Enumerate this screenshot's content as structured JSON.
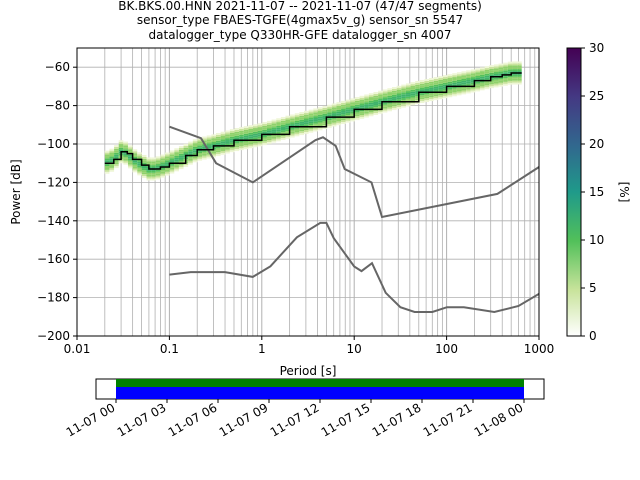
{
  "title_lines": [
    "BK.BKS.00.HNN   2021-11-07 -- 2021-11-07  (47/47 segments)",
    "sensor_type FBAES-TGFE(4gmax5v_g) sensor_sn 5547",
    "datalogger_type Q330HR-GFE datalogger_sn 4007"
  ],
  "chart_data": {
    "type": "heatmap",
    "xlabel": "Period [s]",
    "ylabel": "Power [dB]",
    "xscale": "log",
    "xlim": [
      0.01,
      1000
    ],
    "ylim": [
      -200,
      -50
    ],
    "x_ticks": [
      0.01,
      0.1,
      1,
      10,
      100,
      1000
    ],
    "x_tick_labels": [
      "0.01",
      "0.1",
      "1",
      "10",
      "100",
      "1000"
    ],
    "y_ticks": [
      -200,
      -180,
      -160,
      -140,
      -120,
      -100,
      -80,
      -60
    ],
    "y_tick_labels": [
      "−200",
      "−180",
      "−160",
      "−140",
      "−120",
      "−100",
      "−80",
      "−60"
    ],
    "grid": true,
    "colorbar": {
      "label": "[%]",
      "range": [
        0,
        30
      ],
      "ticks": [
        0,
        5,
        10,
        15,
        20,
        25,
        30
      ],
      "tick_labels": [
        "0",
        "5",
        "10",
        "15",
        "20",
        "25",
        "30"
      ],
      "colors": [
        "#ffffff",
        "#c8e39b",
        "#52c05a",
        "#1f9a8a",
        "#31688e",
        "#443983",
        "#440154"
      ]
    },
    "mode_line": {
      "name": "mode",
      "color": "#000000",
      "x": [
        0.02,
        0.025,
        0.03,
        0.035,
        0.04,
        0.05,
        0.06,
        0.07,
        0.08,
        0.1,
        0.15,
        0.2,
        0.3,
        0.5,
        1,
        2,
        5,
        10,
        20,
        50,
        100,
        200,
        300,
        400,
        500,
        650
      ],
      "y": [
        -110,
        -108,
        -104,
        -105,
        -108,
        -111,
        -113,
        -113,
        -112,
        -110,
        -106,
        -103,
        -101,
        -98,
        -95,
        -91,
        -86,
        -82,
        -78,
        -73,
        -70,
        -67,
        -65,
        -64,
        -63,
        -63
      ]
    },
    "noise_models": [
      {
        "name": "high-noise",
        "color": "#666666",
        "x": [
          0.1,
          0.22,
          0.32,
          0.8,
          3.8,
          4.6,
          6.3,
          7.9,
          15.4,
          20,
          354.8,
          1000
        ],
        "y": [
          -91,
          -97,
          -110,
          -120,
          -98,
          -96.5,
          -101,
          -113,
          -120,
          -138,
          -126,
          -112
        ]
      },
      {
        "name": "low-noise",
        "color": "#666666",
        "x": [
          0.1,
          0.17,
          0.4,
          0.8,
          1.24,
          2.4,
          4.3,
          5.0,
          6.0,
          10.0,
          12.0,
          15.6,
          21.9,
          31.6,
          45.0,
          70.0,
          101.0,
          154.0,
          328.0,
          600.0,
          1000.0
        ],
        "y": [
          -168,
          -166.7,
          -166.7,
          -169.2,
          -163.7,
          -148.6,
          -141.1,
          -141.1,
          -149.0,
          -163.8,
          -166.2,
          -162.1,
          -177.5,
          -185.0,
          -187.5,
          -187.5,
          -185.0,
          -185.0,
          -187.5,
          -184.4,
          -178.0
        ]
      }
    ],
    "band": {
      "name": "psd-histogram",
      "x": [
        0.02,
        0.025,
        0.03,
        0.035,
        0.04,
        0.05,
        0.06,
        0.07,
        0.08,
        0.1,
        0.15,
        0.2,
        0.3,
        0.5,
        1,
        2,
        5,
        10,
        20,
        50,
        100,
        200,
        300,
        400,
        500,
        650
      ],
      "y_center": [
        -110,
        -108,
        -104,
        -105,
        -108,
        -111,
        -113,
        -113,
        -112,
        -110,
        -106,
        -103,
        -101,
        -98,
        -95,
        -91,
        -86,
        -82,
        -78,
        -73,
        -70,
        -67,
        -65,
        -64,
        -63,
        -63
      ],
      "half_width_db": 6
    },
    "time_axis": {
      "tick_labels": [
        "11-07 00",
        "11-07 03",
        "11-07 06",
        "11-07 09",
        "11-07 12",
        "11-07 15",
        "11-07 18",
        "11-07 21",
        "11-08 00"
      ],
      "coverage_colors": [
        "#008000",
        "#0000ff"
      ]
    }
  }
}
